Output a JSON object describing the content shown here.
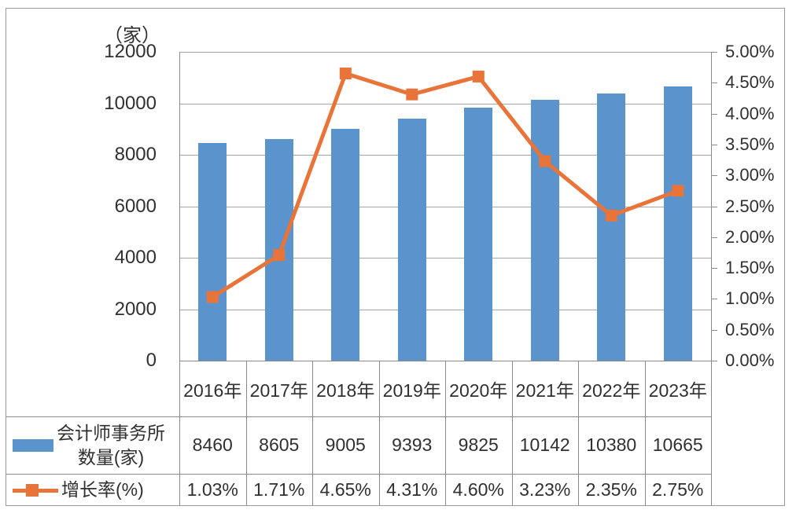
{
  "chart_data": {
    "type": "bar+line",
    "categories": [
      "2016年",
      "2017年",
      "2018年",
      "2019年",
      "2020年",
      "2021年",
      "2022年",
      "2023年"
    ],
    "series": [
      {
        "name": "会计师事务所数量(家)",
        "type": "bar",
        "values": [
          8460,
          8605,
          9005,
          9393,
          9825,
          10142,
          10380,
          10665
        ],
        "color": "#5B93CC"
      },
      {
        "name": "增长率(%)",
        "type": "line",
        "values": [
          1.03,
          1.71,
          4.65,
          4.31,
          4.6,
          3.23,
          2.35,
          2.75
        ],
        "labels": [
          "1.03%",
          "1.71%",
          "4.65%",
          "4.31%",
          "4.60%",
          "3.23%",
          "2.35%",
          "2.75%"
        ],
        "color": "#E8743A"
      }
    ],
    "left_axis": {
      "unit": "（家）",
      "ticks": [
        "12000",
        "10000",
        "8000",
        "6000",
        "4000",
        "2000",
        "0"
      ],
      "min": 0,
      "max": 12000
    },
    "right_axis": {
      "ticks": [
        "5.00%",
        "4.50%",
        "4.00%",
        "3.50%",
        "3.00%",
        "2.50%",
        "2.00%",
        "1.50%",
        "1.00%",
        "0.50%",
        "0.00%"
      ],
      "min": 0,
      "max": 5
    },
    "legend": {
      "bar_label_line1": "会计师事务所",
      "bar_label_line2": "数量(家)",
      "line_label": "增长率(%)"
    },
    "grid": "horizontal",
    "legend_position": "table-left"
  }
}
